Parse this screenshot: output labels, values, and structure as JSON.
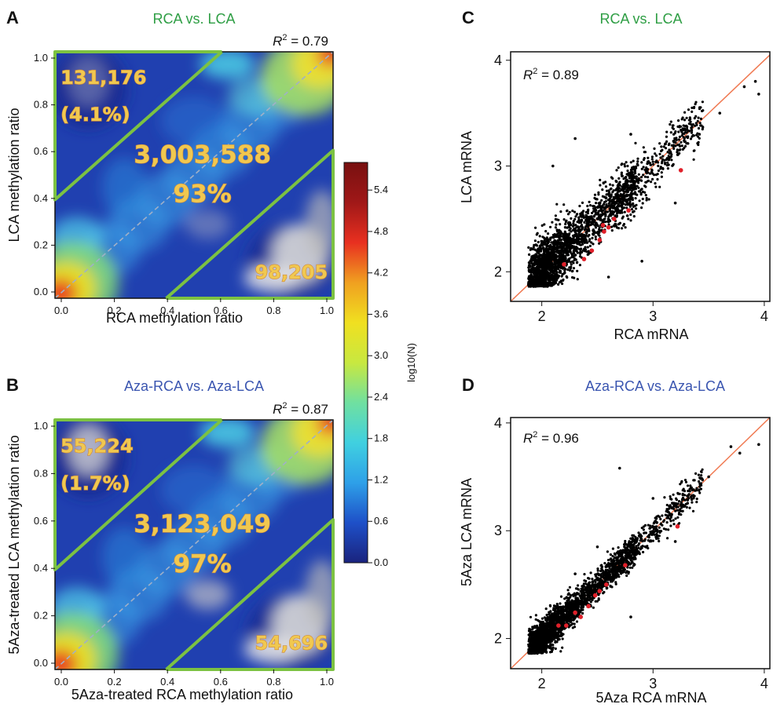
{
  "colors": {
    "green_title": "#2e9e44",
    "blue_title": "#3a55b0",
    "region_line": "#7cc242",
    "fit_line": "#f07850",
    "highlight_point": "#e0202a",
    "point": "#000000"
  },
  "colorbar": {
    "label": "log10(N)",
    "ticks": [
      "5.4",
      "4.8",
      "4.2",
      "3.6",
      "3.0",
      "2.4",
      "1.8",
      "1.2",
      "0.6",
      "0.0"
    ],
    "min": 0.0,
    "max": 5.8,
    "stops": [
      "#1a237e",
      "#1e50c8",
      "#2ea0e8",
      "#40d0e0",
      "#70e0a0",
      "#c8e840",
      "#f0e020",
      "#f0a020",
      "#e83020",
      "#a01818",
      "#781010"
    ]
  },
  "chart_data": [
    {
      "panel": "A",
      "type": "heatmap",
      "title": "RCA vs. LCA",
      "title_color": "green",
      "xlabel": "RCA methylation ratio",
      "ylabel": "LCA methylation ratio",
      "xlim": [
        0,
        1
      ],
      "ylim": [
        0,
        1
      ],
      "xticks": [
        "0.0",
        "0.2",
        "0.4",
        "0.6",
        "0.8",
        "1.0"
      ],
      "yticks": [
        "0.0",
        "0.2",
        "0.4",
        "0.6",
        "0.8",
        "1.0"
      ],
      "r2_label": "R",
      "r2_sup": "2",
      "r2_value": " = 0.79",
      "regions": [
        {
          "name": "upper",
          "count": "131,176",
          "percent": "(4.1%)"
        },
        {
          "name": "diagonal",
          "count": "3,003,588",
          "percent": "93%"
        },
        {
          "name": "lower",
          "count": "98,205",
          "percent": ""
        }
      ]
    },
    {
      "panel": "B",
      "type": "heatmap",
      "title": "Aza-RCA vs. Aza-LCA",
      "title_color": "blue",
      "xlabel": "5Aza-treated RCA methylation ratio",
      "ylabel": "5Aza-treated LCA methylation ratio",
      "xlim": [
        0,
        1
      ],
      "ylim": [
        0,
        1
      ],
      "xticks": [
        "0.0",
        "0.2",
        "0.4",
        "0.6",
        "0.8",
        "1.0"
      ],
      "yticks": [
        "0.0",
        "0.2",
        "0.4",
        "0.6",
        "0.8",
        "1.0"
      ],
      "r2_label": "R",
      "r2_sup": "2",
      "r2_value": " = 0.87",
      "regions": [
        {
          "name": "upper",
          "count": "55,224",
          "percent": "(1.7%)"
        },
        {
          "name": "diagonal",
          "count": "3,123,049",
          "percent": "97%"
        },
        {
          "name": "lower",
          "count": "54,696",
          "percent": ""
        }
      ]
    },
    {
      "panel": "C",
      "type": "scatter",
      "title": "RCA vs. LCA",
      "title_color": "green",
      "xlabel": "RCA mRNA",
      "ylabel": "LCA mRNA",
      "xlim": [
        1.72,
        4.05
      ],
      "ylim": [
        1.72,
        4.08
      ],
      "xticks": [
        2,
        3,
        4
      ],
      "yticks": [
        2,
        3,
        4
      ],
      "r2_label": "R",
      "r2_sup": "2",
      "r2_value": " = 0.89",
      "fit_line": [
        [
          1.72,
          1.72
        ],
        [
          4.05,
          4.05
        ]
      ],
      "spread": 0.12,
      "highlight_points": [
        [
          2.2,
          2.07
        ],
        [
          2.38,
          2.12
        ],
        [
          2.45,
          2.2
        ],
        [
          2.52,
          2.3
        ],
        [
          2.56,
          2.38
        ],
        [
          2.6,
          2.42
        ],
        [
          2.65,
          2.5
        ],
        [
          2.78,
          2.58
        ],
        [
          2.55,
          2.44
        ],
        [
          3.25,
          2.96
        ]
      ],
      "outliers": [
        [
          3.82,
          3.75
        ],
        [
          3.92,
          3.8
        ],
        [
          3.95,
          3.68
        ],
        [
          3.6,
          3.5
        ],
        [
          2.3,
          3.26
        ],
        [
          2.1,
          3.0
        ],
        [
          2.8,
          3.3
        ],
        [
          3.2,
          2.65
        ],
        [
          2.9,
          2.1
        ],
        [
          2.6,
          1.95
        ]
      ]
    },
    {
      "panel": "D",
      "type": "scatter",
      "title": "Aza-RCA vs. Aza-LCA",
      "title_color": "blue",
      "xlabel": "5Aza RCA mRNA",
      "ylabel": "5Aza LCA mRNA",
      "xlim": [
        1.72,
        4.05
      ],
      "ylim": [
        1.72,
        4.05
      ],
      "xticks": [
        2,
        3,
        4
      ],
      "yticks": [
        2,
        3,
        4
      ],
      "r2_label": "R",
      "r2_sup": "2",
      "r2_value": " = 0.96",
      "fit_line": [
        [
          1.72,
          1.72
        ],
        [
          4.05,
          4.05
        ]
      ],
      "spread": 0.07,
      "highlight_points": [
        [
          2.15,
          2.12
        ],
        [
          2.22,
          2.12
        ],
        [
          2.35,
          2.2
        ],
        [
          2.42,
          2.3
        ],
        [
          2.48,
          2.4
        ],
        [
          2.52,
          2.44
        ],
        [
          2.58,
          2.5
        ],
        [
          2.75,
          2.68
        ],
        [
          3.22,
          3.04
        ],
        [
          2.3,
          2.24
        ]
      ],
      "outliers": [
        [
          3.7,
          3.78
        ],
        [
          3.78,
          3.72
        ],
        [
          3.95,
          3.8
        ],
        [
          3.5,
          3.5
        ],
        [
          2.7,
          3.58
        ],
        [
          2.3,
          2.6
        ],
        [
          2.8,
          2.2
        ],
        [
          3.0,
          3.3
        ],
        [
          2.5,
          2.85
        ],
        [
          3.2,
          2.9
        ]
      ]
    }
  ]
}
